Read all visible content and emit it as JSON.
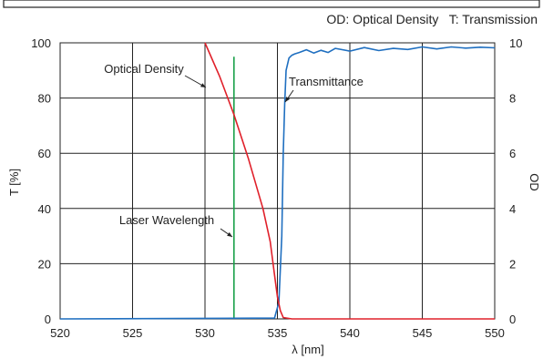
{
  "header_note": "OD: Optical Density   T: Transmission",
  "chart_data": {
    "type": "line",
    "xlabel": "λ [nm]",
    "ylabel_left": "T [%]",
    "ylabel_right": "OD",
    "xlim": [
      520,
      550
    ],
    "ylim_left": [
      0,
      100
    ],
    "ylim_right": [
      0,
      10
    ],
    "x_ticks": [
      520,
      525,
      530,
      535,
      540,
      545,
      550
    ],
    "y_ticks_left": [
      0,
      20,
      40,
      60,
      80,
      100
    ],
    "y_ticks_right": [
      0,
      2,
      4,
      6,
      8,
      10
    ],
    "grid": true,
    "colors": {
      "transmittance": "#1f6fc0",
      "optical_density": "#e0202a",
      "laser": "#1aa04a"
    },
    "series": [
      {
        "name": "Transmittance",
        "axis": "left",
        "x": [
          520,
          534.8,
          535.1,
          535.3,
          535.4,
          535.5,
          535.6,
          535.8,
          536.0,
          536.2,
          536.5,
          537.0,
          537.5,
          538.0,
          538.5,
          539.0,
          540.0,
          541.0,
          542.0,
          543.0,
          544.0,
          545.0,
          546.0,
          547.0,
          548.0,
          549.0,
          550.0
        ],
        "y": [
          0.0,
          0.3,
          6.0,
          30.0,
          60.0,
          78.0,
          90.0,
          94.5,
          95.5,
          96.0,
          96.5,
          97.5,
          96.3,
          97.3,
          96.5,
          98.0,
          97.0,
          98.3,
          97.2,
          98.0,
          97.6,
          98.5,
          97.8,
          98.5,
          98.1,
          98.4,
          98.2
        ]
      },
      {
        "name": "Optical Density",
        "axis": "right",
        "x": [
          530.0,
          531.0,
          532.0,
          533.0,
          534.0,
          534.5,
          534.8,
          535.0,
          535.2,
          535.4,
          536.0,
          540.0,
          545.0,
          550.0
        ],
        "y": [
          10.0,
          8.8,
          7.4,
          5.8,
          4.0,
          2.8,
          1.6,
          0.8,
          0.3,
          0.05,
          0.0,
          0.0,
          0.0,
          0.0
        ]
      },
      {
        "name": "Laser Wavelength",
        "axis": "left",
        "x": [
          532,
          532
        ],
        "y": [
          0,
          95
        ]
      }
    ],
    "annotations": [
      {
        "text": "Optical Density",
        "target": "Optical Density"
      },
      {
        "text": "Transmittance",
        "target": "Transmittance"
      },
      {
        "text": "Laser Wavelength",
        "target": "Laser Wavelength"
      }
    ]
  }
}
